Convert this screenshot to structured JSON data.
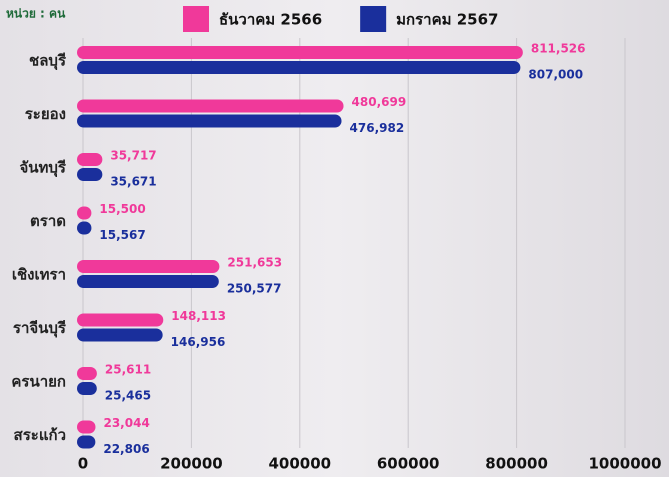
{
  "chart_data": {
    "type": "bar",
    "orientation": "horizontal",
    "unit_label": "หน่วย : คน",
    "categories": [
      "ชลบุรี",
      "ระยอง",
      "จันทบุรี",
      "ตราด",
      "เชิงเทรา",
      "ราจีนบุรี",
      "ครนายก",
      "สระแก้ว"
    ],
    "series": [
      {
        "name": "ธันวาคม 2566",
        "color": "#f0399a",
        "values": [
          811526,
          480699,
          35717,
          15500,
          251653,
          148113,
          25611,
          23044
        ],
        "value_labels": [
          "811,526",
          "480,699",
          "35,717",
          "15,500",
          "251,653",
          "148,113",
          "25,611",
          "23,044"
        ]
      },
      {
        "name": "มกราคม 2567",
        "color": "#1a2f9c",
        "values": [
          807000,
          476982,
          35671,
          15567,
          250577,
          146956,
          25465,
          22806
        ],
        "value_labels": [
          "807,000",
          "476,982",
          "35,671",
          "15,567",
          "250,577",
          "146,956",
          "25,465",
          "22,806"
        ]
      }
    ],
    "xlim": [
      0,
      1000000
    ],
    "xticks": [
      0,
      200000,
      400000,
      600000,
      800000,
      1000000
    ],
    "grid": true,
    "legend": "top"
  }
}
